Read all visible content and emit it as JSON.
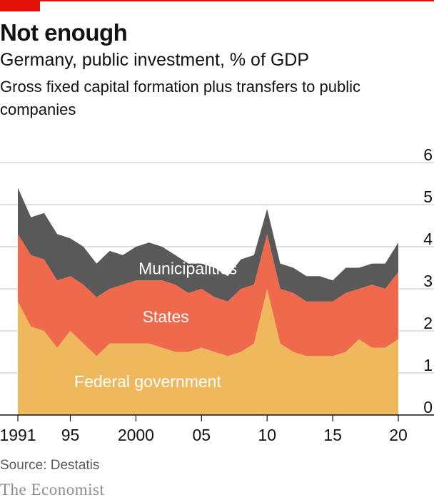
{
  "header": {
    "title": "Not enough",
    "subtitle": "Germany, public investment, % of GDP",
    "description": "Gross fixed capital formation plus transfers to public companies"
  },
  "footer": {
    "source": "Source: Destatis",
    "brand": "The Economist"
  },
  "colors": {
    "brand_red": "#e3120b",
    "federal": "#f0b85c",
    "states": "#ef6a4c",
    "municipalities": "#595959"
  },
  "chart_data": {
    "type": "area",
    "stacked": true,
    "x": [
      1991,
      1992,
      1993,
      1994,
      1995,
      1996,
      1997,
      1998,
      1999,
      2000,
      2001,
      2002,
      2003,
      2004,
      2005,
      2006,
      2007,
      2008,
      2009,
      2010,
      2011,
      2012,
      2013,
      2014,
      2015,
      2016,
      2017,
      2018,
      2019,
      2020
    ],
    "x_tick_values": [
      1991,
      1995,
      2000,
      2005,
      2010,
      2015,
      2020
    ],
    "x_tick_labels": [
      "1991",
      "95",
      "2000",
      "05",
      "10",
      "15",
      "20"
    ],
    "y_ticks": [
      0,
      1,
      2,
      3,
      4,
      5,
      6
    ],
    "ylim": [
      0,
      6
    ],
    "y_axis_side": "right",
    "grid": true,
    "series": [
      {
        "name": "Federal government",
        "color": "#f0b85c",
        "values": [
          2.7,
          2.1,
          2.0,
          1.6,
          2.0,
          1.7,
          1.4,
          1.7,
          1.7,
          1.7,
          1.7,
          1.6,
          1.5,
          1.5,
          1.6,
          1.5,
          1.4,
          1.5,
          1.7,
          3.0,
          1.7,
          1.5,
          1.4,
          1.4,
          1.4,
          1.5,
          1.8,
          1.6,
          1.6,
          1.8
        ]
      },
      {
        "name": "States",
        "color": "#ef6a4c",
        "values": [
          1.6,
          1.7,
          1.7,
          1.6,
          1.3,
          1.4,
          1.4,
          1.3,
          1.4,
          1.5,
          1.5,
          1.6,
          1.6,
          1.4,
          1.4,
          1.3,
          1.3,
          1.5,
          1.4,
          1.3,
          1.3,
          1.4,
          1.3,
          1.3,
          1.3,
          1.4,
          1.2,
          1.5,
          1.4,
          1.6
        ]
      },
      {
        "name": "Municipalities",
        "color": "#595959",
        "values": [
          1.1,
          0.9,
          1.1,
          1.1,
          0.9,
          0.9,
          0.8,
          0.9,
          0.7,
          0.8,
          0.9,
          0.8,
          0.7,
          0.7,
          0.6,
          0.7,
          0.6,
          0.7,
          0.7,
          0.6,
          0.6,
          0.6,
          0.6,
          0.6,
          0.5,
          0.6,
          0.5,
          0.5,
          0.6,
          0.7
        ]
      }
    ]
  }
}
